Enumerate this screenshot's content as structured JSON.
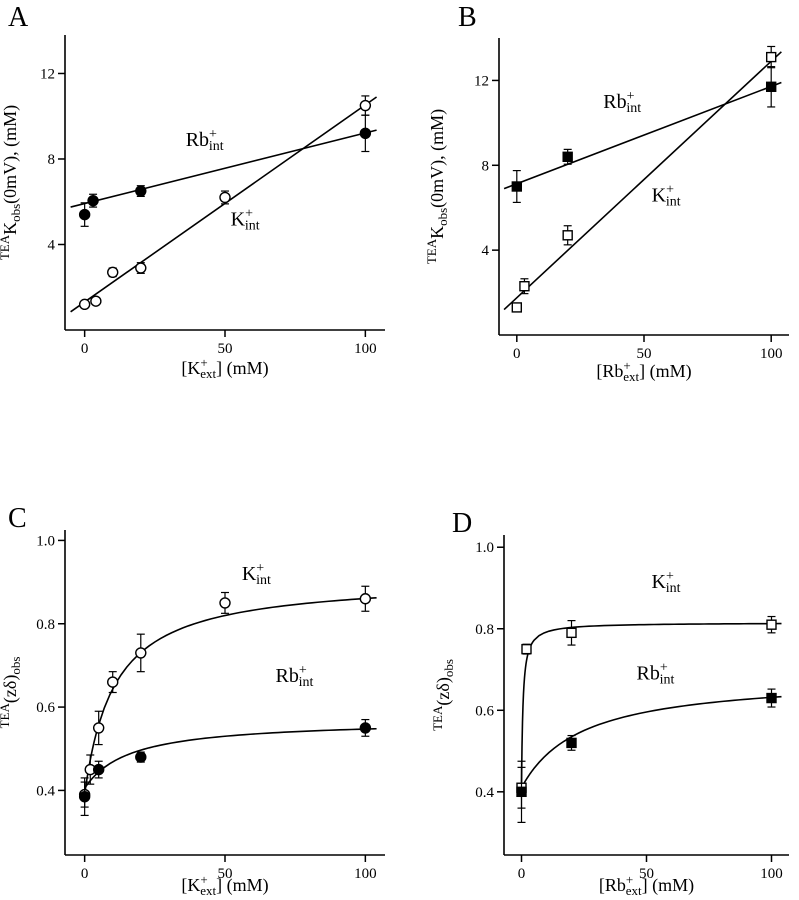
{
  "figure": {
    "background": "#ffffff",
    "ink": "#000000",
    "panel_letters": [
      "A",
      "B",
      "C",
      "D"
    ]
  },
  "chart_data": [
    {
      "type": "scatter",
      "panel": "A",
      "title": "",
      "xlabel": "[K+ext] (mM)",
      "ylabel": "TEAKobs(0mV), (mM)",
      "xlabel_segments": [
        {
          "t": "[K"
        },
        {
          "sup": "+",
          "sub": "ext"
        },
        {
          "t": "] (mM)"
        }
      ],
      "ylabel_segments": [
        {
          "t": "TEA",
          "pos": "sup"
        },
        {
          "t": "K"
        },
        {
          "t": "obs",
          "pos": "sub"
        },
        {
          "t": "(0mV), (mM)"
        }
      ],
      "xlim": [
        -7,
        107
      ],
      "ylim": [
        0,
        13.8
      ],
      "xticks": {
        "values": [
          0,
          50,
          100
        ],
        "labels": [
          "0",
          "50",
          "100"
        ]
      },
      "yticks": {
        "values": [
          4,
          8,
          12
        ],
        "labels": [
          "4",
          "8",
          "12"
        ]
      },
      "grid": false,
      "legend": "in-plot annotations",
      "series": [
        {
          "name": "Rb+_int",
          "marker": "circle",
          "variant": "filled",
          "label_segments": [
            {
              "t": "Rb"
            },
            {
              "sup": "+",
              "sub": "int"
            }
          ],
          "label_at": {
            "x": 36,
            "y": 8.6
          },
          "x": [
            0,
            3,
            20,
            100
          ],
          "y": [
            5.4,
            6.05,
            6.5,
            9.2
          ],
          "err": [
            0.55,
            0.3,
            0.25,
            0.85
          ]
        },
        {
          "name": "K+_int",
          "marker": "circle",
          "variant": "open",
          "label_segments": [
            {
              "t": "K"
            },
            {
              "sup": "+",
              "sub": "int"
            }
          ],
          "label_at": {
            "x": 52,
            "y": 4.9
          },
          "x": [
            0,
            4,
            10,
            20,
            50,
            100
          ],
          "y": [
            1.2,
            1.35,
            2.7,
            2.9,
            6.2,
            10.5
          ],
          "err": [
            0.15,
            0.15,
            0.2,
            0.25,
            0.3,
            0.45
          ]
        }
      ],
      "fits": [
        {
          "for": "Rb+_int",
          "type": "line",
          "x": [
            -5,
            104
          ],
          "y": [
            5.75,
            9.35
          ]
        },
        {
          "for": "K+_int",
          "type": "line",
          "x": [
            -5,
            104
          ],
          "y": [
            0.85,
            10.9
          ]
        }
      ]
    },
    {
      "type": "scatter",
      "panel": "B",
      "title": "",
      "xlabel": "[Rb+ext] (mM)",
      "ylabel": "TEAKobs(0mV), (mM)",
      "xlabel_segments": [
        {
          "t": "[Rb"
        },
        {
          "sup": "+",
          "sub": "ext"
        },
        {
          "t": "] (mM)"
        }
      ],
      "ylabel_segments": [
        {
          "t": "TEA",
          "pos": "sup"
        },
        {
          "t": "K"
        },
        {
          "t": "obs",
          "pos": "sub"
        },
        {
          "t": "(0mV), (mM)"
        }
      ],
      "xlim": [
        -7,
        107
      ],
      "ylim": [
        0,
        14
      ],
      "xticks": {
        "values": [
          0,
          50,
          100
        ],
        "labels": [
          "0",
          "50",
          "100"
        ]
      },
      "yticks": {
        "values": [
          4,
          8,
          12
        ],
        "labels": [
          "4",
          "8",
          "12"
        ]
      },
      "grid": false,
      "legend": "in-plot annotations",
      "series": [
        {
          "name": "Rb+_int",
          "marker": "square",
          "variant": "filled",
          "label_segments": [
            {
              "t": "Rb"
            },
            {
              "sup": "+",
              "sub": "int"
            }
          ],
          "label_at": {
            "x": 34,
            "y": 10.7
          },
          "x": [
            0,
            20,
            100
          ],
          "y": [
            7.0,
            8.4,
            11.7
          ],
          "err": [
            0.75,
            0.35,
            0.95
          ]
        },
        {
          "name": "K+_int",
          "marker": "square",
          "variant": "open",
          "label_segments": [
            {
              "t": "K"
            },
            {
              "sup": "+",
              "sub": "int"
            }
          ],
          "label_at": {
            "x": 53,
            "y": 6.3
          },
          "x": [
            0,
            3,
            20,
            100
          ],
          "y": [
            1.3,
            2.3,
            4.7,
            13.1
          ],
          "err": [
            0.2,
            0.35,
            0.45,
            0.5
          ]
        }
      ],
      "fits": [
        {
          "for": "Rb+_int",
          "type": "line",
          "x": [
            -5,
            104
          ],
          "y": [
            6.9,
            11.9
          ]
        },
        {
          "for": "K+_int",
          "type": "line",
          "x": [
            -5,
            104
          ],
          "y": [
            1.2,
            13.35
          ]
        }
      ]
    },
    {
      "type": "scatter",
      "panel": "C",
      "title": "",
      "xlabel": "[K+ext] (mM)",
      "ylabel": "TEA(zδ)obs",
      "xlabel_segments": [
        {
          "t": "[K"
        },
        {
          "sup": "+",
          "sub": "ext"
        },
        {
          "t": "] (mM)"
        }
      ],
      "ylabel_segments": [
        {
          "t": "TEA",
          "pos": "sup"
        },
        {
          "t": "(zδ)"
        },
        {
          "t": "obs",
          "pos": "sub"
        }
      ],
      "xlim": [
        -7,
        107
      ],
      "ylim": [
        0.245,
        1.025
      ],
      "xticks": {
        "values": [
          0,
          50,
          100
        ],
        "labels": [
          "0",
          "50",
          "100"
        ]
      },
      "yticks": {
        "values": [
          0.4,
          0.6,
          0.8,
          1.0
        ],
        "labels": [
          "0.4",
          "0.6",
          "0.8",
          "1.0"
        ]
      },
      "grid": false,
      "legend": "in-plot annotations",
      "series": [
        {
          "name": "K+_int",
          "marker": "circle",
          "variant": "open",
          "label_segments": [
            {
              "t": "K"
            },
            {
              "sup": "+",
              "sub": "int"
            }
          ],
          "label_at": {
            "x": 56,
            "y": 0.905
          },
          "x": [
            0,
            2,
            5,
            10,
            20,
            50,
            100
          ],
          "y": [
            0.39,
            0.45,
            0.55,
            0.66,
            0.73,
            0.85,
            0.86
          ],
          "err": [
            0.03,
            0.035,
            0.04,
            0.025,
            0.045,
            0.025,
            0.03
          ]
        },
        {
          "name": "Rb+_int",
          "marker": "circle",
          "variant": "filled",
          "label_segments": [
            {
              "t": "Rb"
            },
            {
              "sup": "+",
              "sub": "int"
            }
          ],
          "label_at": {
            "x": 68,
            "y": 0.66
          },
          "x": [
            0,
            5,
            20,
            100
          ],
          "y": [
            0.385,
            0.45,
            0.48,
            0.55
          ],
          "err": [
            0.045,
            0.02,
            0.012,
            0.02
          ]
        }
      ],
      "fits": [
        {
          "for": "K+_int",
          "type": "saturation",
          "y0": 0.39,
          "amplitude": 0.52,
          "k": 10.5,
          "x_range": [
            0,
            104
          ]
        },
        {
          "for": "Rb+_int",
          "type": "saturation",
          "y0": 0.405,
          "amplitude": 0.165,
          "k": 16,
          "x_range": [
            0,
            104
          ]
        }
      ]
    },
    {
      "type": "scatter",
      "panel": "D",
      "title": "",
      "xlabel": "[Rb+ext] (mM)",
      "ylabel": "TEA(zδ)obs",
      "xlabel_segments": [
        {
          "t": "[Rb"
        },
        {
          "sup": "+",
          "sub": "ext"
        },
        {
          "t": "] (mM)"
        }
      ],
      "ylabel_segments": [
        {
          "t": "TEA",
          "pos": "sup"
        },
        {
          "t": "(zδ)"
        },
        {
          "t": "obs",
          "pos": "sub"
        }
      ],
      "xlim": [
        -7,
        107
      ],
      "ylim": [
        0.245,
        1.03
      ],
      "xticks": {
        "values": [
          0,
          50,
          100
        ],
        "labels": [
          "0",
          "50",
          "100"
        ]
      },
      "yticks": {
        "values": [
          0.4,
          0.6,
          0.8,
          1.0
        ],
        "labels": [
          "0.4",
          "0.6",
          "0.8",
          "1.0"
        ]
      },
      "grid": false,
      "legend": "in-plot annotations",
      "series": [
        {
          "name": "K+_int",
          "marker": "square",
          "variant": "open",
          "label_segments": [
            {
              "t": "K"
            },
            {
              "sup": "+",
              "sub": "int"
            }
          ],
          "label_at": {
            "x": 52,
            "y": 0.9
          },
          "x": [
            0,
            2,
            20,
            100
          ],
          "y": [
            0.41,
            0.75,
            0.79,
            0.81
          ],
          "err": [
            0.05,
            0.012,
            0.03,
            0.02
          ]
        },
        {
          "name": "Rb+_int",
          "marker": "square",
          "variant": "filled",
          "label_segments": [
            {
              "t": "Rb"
            },
            {
              "sup": "+",
              "sub": "int"
            }
          ],
          "label_at": {
            "x": 46,
            "y": 0.675
          },
          "x": [
            0,
            20,
            100
          ],
          "y": [
            0.4,
            0.52,
            0.63
          ],
          "err": [
            0.075,
            0.018,
            0.022
          ]
        }
      ],
      "fits": [
        {
          "for": "K+_int",
          "type": "saturation",
          "y0": 0.41,
          "amplitude": 0.405,
          "k": 0.6,
          "x_range": [
            0,
            104
          ]
        },
        {
          "for": "Rb+_int",
          "type": "saturation",
          "y0": 0.41,
          "amplitude": 0.275,
          "k": 24,
          "x_range": [
            0,
            104
          ]
        }
      ]
    }
  ]
}
